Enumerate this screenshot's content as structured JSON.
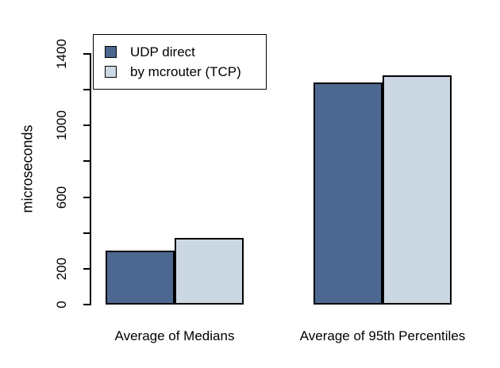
{
  "chart_data": {
    "type": "bar",
    "title": "",
    "ylabel": "microseconds",
    "xlabel": "",
    "ylim": [
      0,
      1400
    ],
    "ytick_step": 200,
    "yticks_labeled": [
      0,
      200,
      600,
      1000,
      1400
    ],
    "grid": false,
    "legend_position": "top-left",
    "categories": [
      "Average of Medians",
      "Average of 95th Percentiles"
    ],
    "series": [
      {
        "name": "UDP direct",
        "color": "#4d6890",
        "values": [
          300,
          1240
        ]
      },
      {
        "name": "by mcrouter (TCP)",
        "color": "#cbd7e3",
        "values": [
          370,
          1280
        ]
      }
    ],
    "bar_border_color": "#000000",
    "axis_color": "#000000",
    "background_color": "#ffffff"
  }
}
